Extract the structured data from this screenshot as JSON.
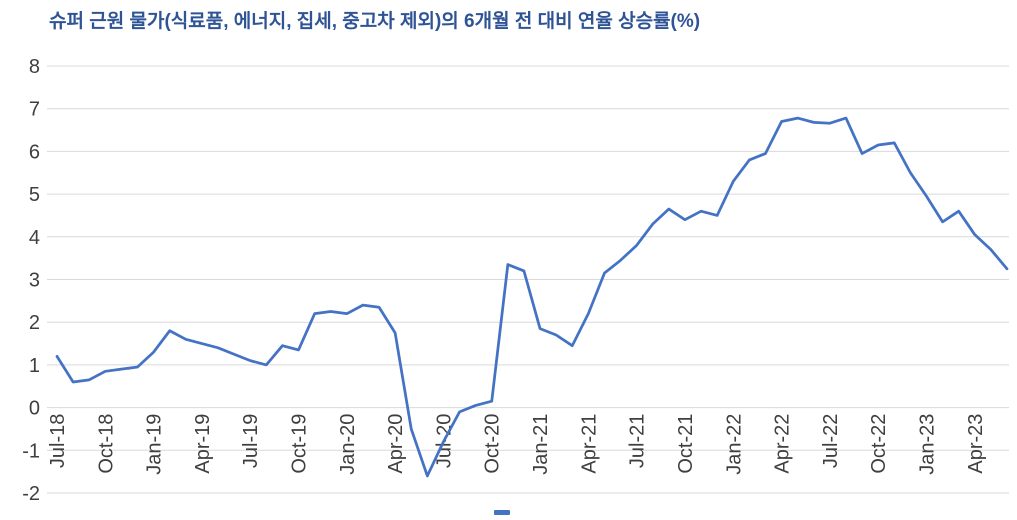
{
  "header": {
    "title": "슈퍼 근원 물가(식료품, 에너지, 집세, 중고차 제외)의 6개월 전 대비 연율 상승률(%)"
  },
  "style": {
    "line_color": "#4472C4",
    "grid_color": "#D9D9D9",
    "axis_text_color": "#3f3f3f",
    "title_color": "#2F5496",
    "background": "#FFFFFF"
  },
  "chart_data": {
    "type": "line",
    "title": "슈퍼 근원 물가(식료품, 에너지, 집세, 중고차 제외)의 6개월 전 대비 연율 상승률(%)",
    "xlabel": "",
    "ylabel": "",
    "ylim": [
      -2,
      8
    ],
    "y_ticks": [
      8,
      7,
      6,
      5,
      4,
      3,
      2,
      1,
      0,
      -1,
      -2
    ],
    "grid": "horizontal",
    "legend_position": "bottom (cut off at page edge, label not visible)",
    "x": [
      "Jul-18",
      "Aug-18",
      "Sep-18",
      "Oct-18",
      "Nov-18",
      "Dec-18",
      "Jan-19",
      "Feb-19",
      "Mar-19",
      "Apr-19",
      "May-19",
      "Jun-19",
      "Jul-19",
      "Aug-19",
      "Sep-19",
      "Oct-19",
      "Nov-19",
      "Dec-19",
      "Jan-20",
      "Feb-20",
      "Mar-20",
      "Apr-20",
      "May-20",
      "Jun-20",
      "Jul-20",
      "Aug-20",
      "Sep-20",
      "Oct-20",
      "Nov-20",
      "Dec-20",
      "Jan-21",
      "Feb-21",
      "Mar-21",
      "Apr-21",
      "May-21",
      "Jun-21",
      "Jul-21",
      "Aug-21",
      "Sep-21",
      "Oct-21",
      "Nov-21",
      "Dec-21",
      "Jan-22",
      "Feb-22",
      "Mar-22",
      "Apr-22",
      "May-22",
      "Jun-22",
      "Jul-22",
      "Aug-22",
      "Sep-22",
      "Oct-22",
      "Nov-22",
      "Dec-22",
      "Jan-23",
      "Feb-23",
      "Mar-23",
      "Apr-23",
      "May-23",
      "Jun-23"
    ],
    "x_tick_every": 3,
    "x_tick_labels": [
      "Jul-18",
      "Oct-18",
      "Jan-19",
      "Apr-19",
      "Jul-19",
      "Oct-19",
      "Jan-20",
      "Apr-20",
      "Jul-20",
      "Oct-20",
      "Jan-21",
      "Apr-21",
      "Jul-21",
      "Oct-21",
      "Jan-22",
      "Apr-22",
      "Jul-22",
      "Oct-22",
      "Jan-23",
      "Apr-23"
    ],
    "series": [
      {
        "name": "",
        "color": "#4472C4",
        "values": [
          1.2,
          0.6,
          0.65,
          0.85,
          0.9,
          0.95,
          1.3,
          1.8,
          1.6,
          1.5,
          1.4,
          1.25,
          1.1,
          1.0,
          1.45,
          1.35,
          2.2,
          2.25,
          2.2,
          2.4,
          2.35,
          1.75,
          -0.5,
          -1.6,
          -0.8,
          -0.1,
          0.05,
          0.15,
          3.35,
          3.2,
          1.85,
          1.7,
          1.45,
          2.2,
          3.15,
          3.45,
          3.8,
          4.3,
          4.65,
          4.4,
          4.6,
          4.5,
          5.3,
          5.8,
          5.95,
          6.7,
          6.78,
          6.68,
          6.66,
          6.78,
          5.95,
          6.15,
          6.2,
          5.5,
          4.95,
          4.35,
          4.6,
          4.05,
          3.7,
          3.25
        ]
      }
    ]
  }
}
